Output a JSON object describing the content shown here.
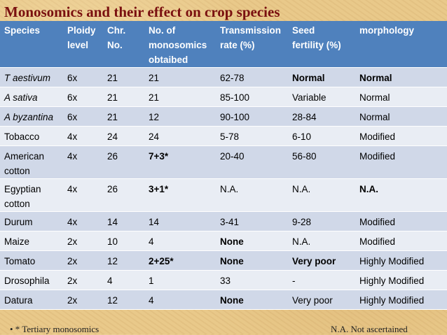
{
  "title": "Monosomics and their effect on crop species",
  "headers": {
    "species": "Species",
    "ploidy_1": "Ploidy",
    "ploidy_2": "level",
    "chr_1": "Chr.",
    "chr_2": "No.",
    "mono_1": "No. of",
    "mono_2": "monosomics",
    "mono_3": "obtaibed",
    "trans_1": "Transmission",
    "trans_2": "rate (%)",
    "seed_1": "Seed",
    "seed_2": "fertility (%)",
    "morph": "morphology"
  },
  "rows": [
    {
      "species": "T aestivum",
      "ploidy": "6x",
      "chr": "21",
      "mono": "21",
      "trans": "62-78",
      "seed": "Normal",
      "morph": "Normal"
    },
    {
      "species": "A sativa",
      "ploidy": "6x",
      "chr": "21",
      "mono": "21",
      "trans": "85-100",
      "seed": "Variable",
      "morph": "Normal"
    },
    {
      "species": "A byzantina",
      "ploidy": "6x",
      "chr": "21",
      "mono": "12",
      "trans": "90-100",
      "seed": "28-84",
      "morph": "Normal"
    },
    {
      "species": "Tobacco",
      "ploidy": "4x",
      "chr": "24",
      "mono": "24",
      "trans": "5-78",
      "seed": "6-10",
      "morph": "Modified"
    },
    {
      "species_1": "American",
      "species_2": "cotton",
      "ploidy": "4x",
      "chr": "26",
      "mono": "7+3*",
      "trans": "20-40",
      "seed": "56-80",
      "morph": "Modified"
    },
    {
      "species_1": "Egyptian",
      "species_2": "cotton",
      "ploidy": "4x",
      "chr": "26",
      "mono": "3+1*",
      "trans": "N.A.",
      "seed": "N.A.",
      "morph": "N.A."
    },
    {
      "species": "Durum",
      "ploidy": "4x",
      "chr": "14",
      "mono": "14",
      "trans": "3-41",
      "seed": "9-28",
      "morph": "Modified"
    },
    {
      "species": "Maize",
      "ploidy": "2x",
      "chr": "10",
      "mono": "4",
      "trans": "None",
      "seed": "N.A.",
      "morph": "Modified"
    },
    {
      "species": "Tomato",
      "ploidy": "2x",
      "chr": "12",
      "mono": "2+25*",
      "trans": "None",
      "seed": "Very poor",
      "morph": "Highly Modified"
    },
    {
      "species": "Drosophila",
      "ploidy": "2x",
      "chr": "4",
      "mono": "1",
      "trans": "33",
      "seed": "-",
      "morph": "Highly Modified"
    },
    {
      "species": "Datura",
      "ploidy": "2x",
      "chr": "12",
      "mono": "4",
      "trans": "None",
      "seed": "Very poor",
      "morph": "Highly Modified"
    }
  ],
  "footer": {
    "left": "• * Tertiary monosomics",
    "right": "N.A. Not ascertained"
  },
  "colors": {
    "header_bg": "#4f81bd",
    "row_dark": "#d0d8e8",
    "row_light": "#e9edf4",
    "title": "#7a1010",
    "background": "#e9c98a"
  }
}
